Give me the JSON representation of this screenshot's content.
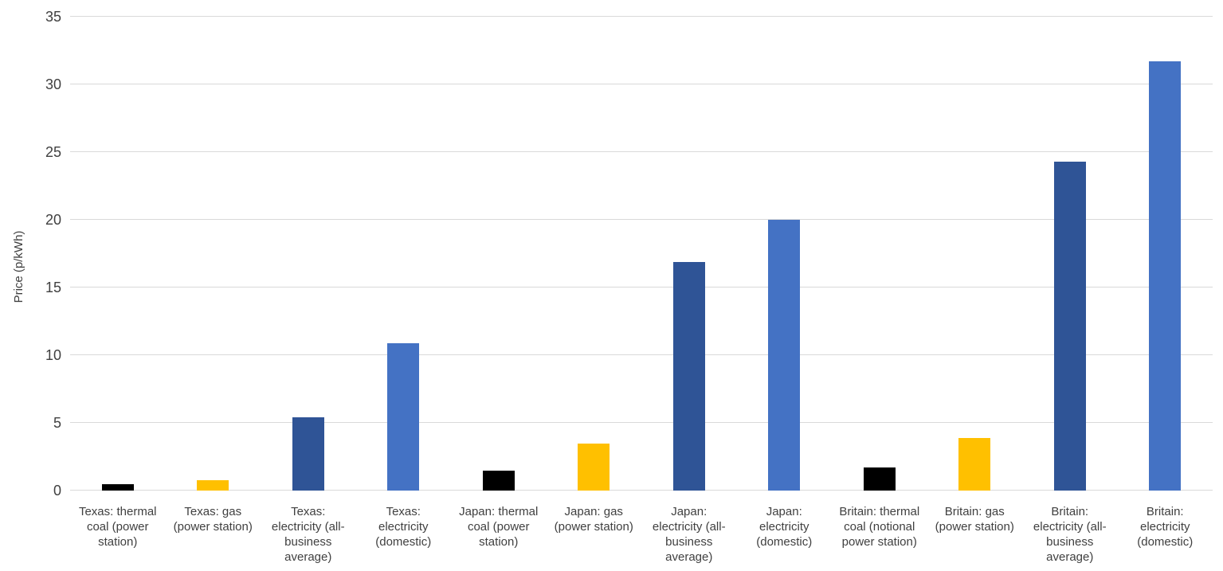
{
  "chart_data": {
    "type": "bar",
    "title": "",
    "xlabel": "",
    "ylabel": "Price (p/kWh)",
    "ylim": [
      0,
      35
    ],
    "yticks": [
      0,
      5,
      10,
      15,
      20,
      25,
      30,
      35
    ],
    "grid": true,
    "legend": false,
    "categories": [
      "Texas: thermal\ncoal (power\nstation)",
      "Texas: gas\n(power station)",
      "Texas:\nelectricity (all-\nbusiness\naverage)",
      "Texas:\nelectricity\n(domestic)",
      "Japan: thermal\ncoal (power\nstation)",
      "Japan: gas\n(power station)",
      "Japan:\nelectricity (all-\nbusiness\naverage)",
      "Japan:\nelectricity\n(domestic)",
      "Britain: thermal\ncoal (notional\npower station)",
      "Britain: gas\n(power station)",
      "Britain:\nelectricity (all-\nbusiness\naverage)",
      "Britain:\nelectricity\n(domestic)"
    ],
    "values": [
      0.5,
      0.75,
      5.4,
      10.9,
      1.5,
      3.5,
      16.9,
      20,
      1.7,
      3.9,
      24.3,
      31.7
    ],
    "bar_colors": [
      "#000000",
      "#FFC000",
      "#2F5496",
      "#4472C4",
      "#000000",
      "#FFC000",
      "#2F5496",
      "#4472C4",
      "#000000",
      "#FFC000",
      "#2F5496",
      "#4472C4"
    ],
    "colors": {
      "thermal_coal": "#000000",
      "gas": "#FFC000",
      "electricity_all_business": "#2F5496",
      "electricity_domestic": "#4472C4",
      "gridline": "#D9D9D9",
      "text": "#404040",
      "background": "#FFFFFF"
    }
  }
}
